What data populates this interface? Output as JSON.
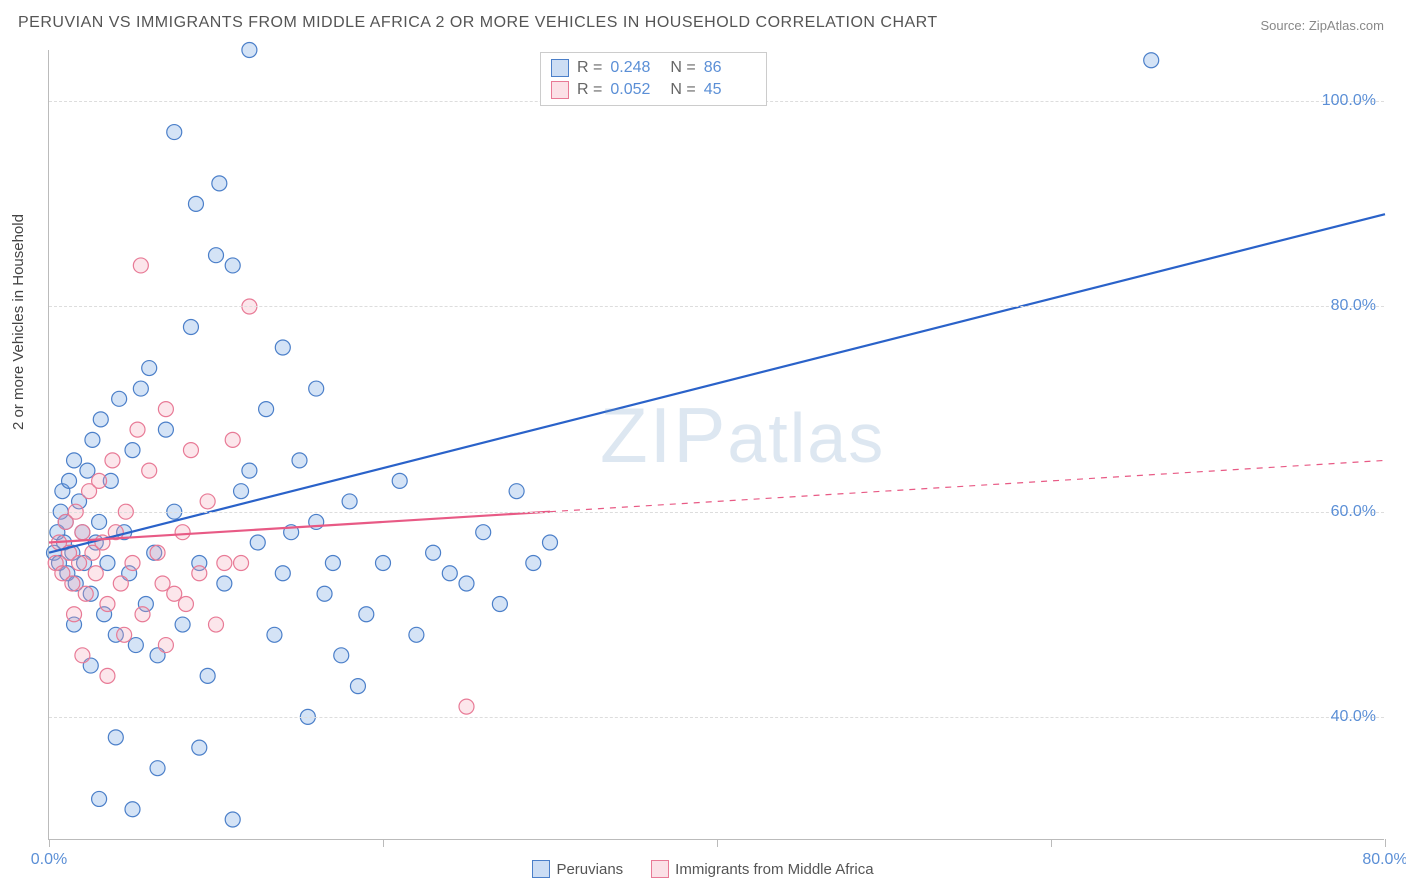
{
  "title": "PERUVIAN VS IMMIGRANTS FROM MIDDLE AFRICA 2 OR MORE VEHICLES IN HOUSEHOLD CORRELATION CHART",
  "source_label": "Source: ",
  "source_name": "ZipAtlas.com",
  "ylabel": "2 or more Vehicles in Household",
  "watermark": "ZIPatlas",
  "chart": {
    "type": "scatter",
    "background_color": "#ffffff",
    "grid_color": "#dddddd",
    "axis_color": "#bbbbbb",
    "xlim": [
      0,
      80
    ],
    "ylim": [
      28,
      105
    ],
    "xticks": [
      0,
      20,
      40,
      60,
      80
    ],
    "xtick_labels": [
      "0.0%",
      "",
      "",
      "",
      "80.0%"
    ],
    "yticks": [
      40,
      60,
      80,
      100
    ],
    "ytick_labels": [
      "40.0%",
      "60.0%",
      "80.0%",
      "100.0%"
    ],
    "ytick_color": "#5b8fd6",
    "xtick_color": "#5b8fd6",
    "marker_radius": 7.5,
    "marker_fill_opacity": 0.28,
    "marker_stroke_width": 1.2,
    "line_width": 2.2,
    "series": [
      {
        "name": "Peruvians",
        "color": "#6699dd",
        "stroke": "#4b7fc9",
        "line_color": "#2a62c9",
        "R": "0.248",
        "N": "86",
        "trend": {
          "x1": 0,
          "y1": 56,
          "x2": 80,
          "y2": 89,
          "solid_until_x": 80
        },
        "points": [
          [
            0.3,
            56
          ],
          [
            0.5,
            58
          ],
          [
            0.6,
            55
          ],
          [
            0.7,
            60
          ],
          [
            0.8,
            62
          ],
          [
            0.9,
            57
          ],
          [
            1.0,
            59
          ],
          [
            1.1,
            54
          ],
          [
            1.2,
            63
          ],
          [
            1.4,
            56
          ],
          [
            1.5,
            65
          ],
          [
            1.6,
            53
          ],
          [
            1.8,
            61
          ],
          [
            2.0,
            58
          ],
          [
            2.1,
            55
          ],
          [
            2.3,
            64
          ],
          [
            2.5,
            52
          ],
          [
            2.6,
            67
          ],
          [
            2.8,
            57
          ],
          [
            3.0,
            59
          ],
          [
            3.1,
            69
          ],
          [
            3.3,
            50
          ],
          [
            3.5,
            55
          ],
          [
            3.7,
            63
          ],
          [
            4.0,
            48
          ],
          [
            4.2,
            71
          ],
          [
            4.5,
            58
          ],
          [
            4.8,
            54
          ],
          [
            5.0,
            66
          ],
          [
            5.2,
            47
          ],
          [
            5.5,
            72
          ],
          [
            5.8,
            51
          ],
          [
            6.0,
            74
          ],
          [
            6.3,
            56
          ],
          [
            6.5,
            46
          ],
          [
            7.0,
            68
          ],
          [
            7.5,
            60
          ],
          [
            8.0,
            49
          ],
          [
            8.5,
            78
          ],
          [
            9.0,
            55
          ],
          [
            9.5,
            44
          ],
          [
            10.0,
            85
          ],
          [
            10.5,
            53
          ],
          [
            11.0,
            84
          ],
          [
            11.5,
            62
          ],
          [
            12.0,
            105
          ],
          [
            12.5,
            57
          ],
          [
            13.0,
            70
          ],
          [
            13.5,
            48
          ],
          [
            14.0,
            76
          ],
          [
            14.5,
            58
          ],
          [
            15.0,
            65
          ],
          [
            15.5,
            40
          ],
          [
            16.0,
            72
          ],
          [
            16.5,
            52
          ],
          [
            17.0,
            55
          ],
          [
            17.5,
            46
          ],
          [
            18.0,
            61
          ],
          [
            19.0,
            50
          ],
          [
            20.0,
            55
          ],
          [
            21.0,
            63
          ],
          [
            22.0,
            48
          ],
          [
            23.0,
            56
          ],
          [
            24.0,
            54
          ],
          [
            25.0,
            53
          ],
          [
            26.0,
            58
          ],
          [
            27.0,
            51
          ],
          [
            28.0,
            62
          ],
          [
            29.0,
            55
          ],
          [
            30.0,
            57
          ],
          [
            6.5,
            35
          ],
          [
            3.0,
            32
          ],
          [
            9.0,
            37
          ],
          [
            7.5,
            97
          ],
          [
            8.8,
            90
          ],
          [
            10.2,
            92
          ],
          [
            5.0,
            31
          ],
          [
            4.0,
            38
          ],
          [
            2.5,
            45
          ],
          [
            1.5,
            49
          ],
          [
            11.0,
            30
          ],
          [
            66.0,
            104
          ],
          [
            18.5,
            43
          ],
          [
            14.0,
            54
          ],
          [
            16.0,
            59
          ],
          [
            12.0,
            64
          ]
        ]
      },
      {
        "name": "Immigrants from Middle Africa",
        "color": "#f4a6b8",
        "stroke": "#e87a96",
        "line_color": "#e85a85",
        "R": "0.052",
        "N": "45",
        "trend": {
          "x1": 0,
          "y1": 57,
          "x2": 80,
          "y2": 65,
          "solid_until_x": 30
        },
        "points": [
          [
            0.4,
            55
          ],
          [
            0.6,
            57
          ],
          [
            0.8,
            54
          ],
          [
            1.0,
            59
          ],
          [
            1.2,
            56
          ],
          [
            1.4,
            53
          ],
          [
            1.6,
            60
          ],
          [
            1.8,
            55
          ],
          [
            2.0,
            58
          ],
          [
            2.2,
            52
          ],
          [
            2.4,
            62
          ],
          [
            2.6,
            56
          ],
          [
            2.8,
            54
          ],
          [
            3.0,
            63
          ],
          [
            3.2,
            57
          ],
          [
            3.5,
            51
          ],
          [
            3.8,
            65
          ],
          [
            4.0,
            58
          ],
          [
            4.3,
            53
          ],
          [
            4.6,
            60
          ],
          [
            5.0,
            55
          ],
          [
            5.3,
            68
          ],
          [
            5.6,
            50
          ],
          [
            6.0,
            64
          ],
          [
            6.5,
            56
          ],
          [
            7.0,
            70
          ],
          [
            7.5,
            52
          ],
          [
            8.0,
            58
          ],
          [
            8.5,
            66
          ],
          [
            9.0,
            54
          ],
          [
            9.5,
            61
          ],
          [
            10.0,
            49
          ],
          [
            10.5,
            55
          ],
          [
            11.0,
            67
          ],
          [
            12.0,
            80
          ],
          [
            5.5,
            84
          ],
          [
            2.0,
            46
          ],
          [
            3.5,
            44
          ],
          [
            7.0,
            47
          ],
          [
            4.5,
            48
          ],
          [
            1.5,
            50
          ],
          [
            6.8,
            53
          ],
          [
            8.2,
            51
          ],
          [
            11.5,
            55
          ],
          [
            25.0,
            41
          ]
        ]
      }
    ]
  },
  "legend_top": {
    "r_label": "R =",
    "n_label": "N ="
  },
  "legend_bottom": {
    "items": [
      "Peruvians",
      "Immigrants from Middle Africa"
    ]
  }
}
